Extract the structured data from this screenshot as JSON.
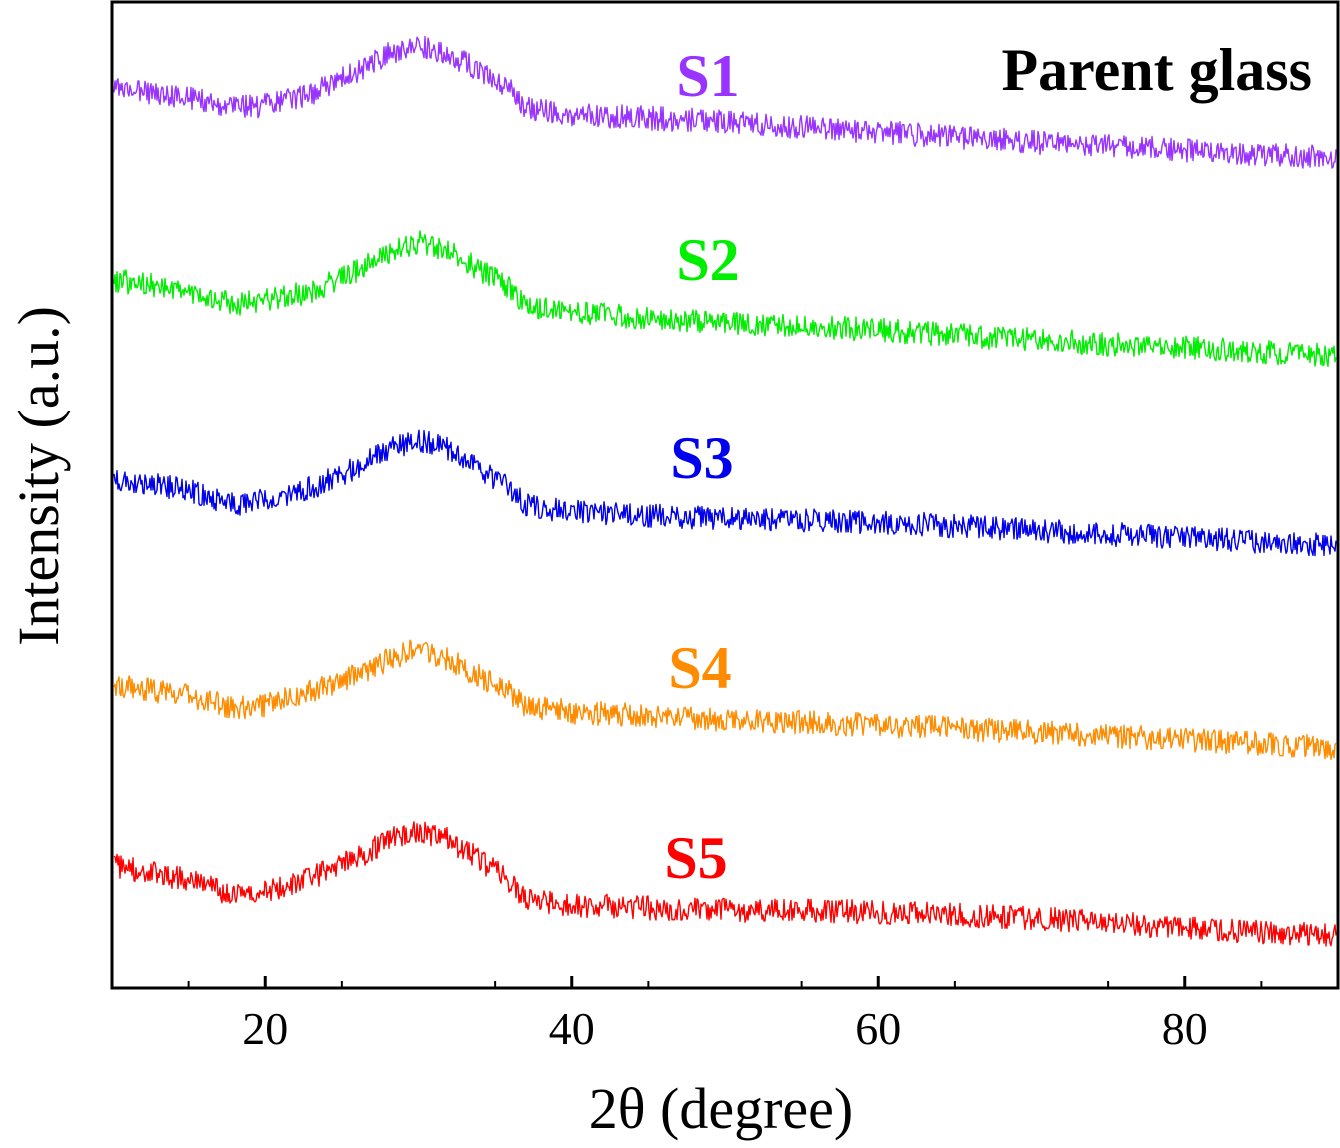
{
  "chart_data": {
    "type": "line",
    "title": "Parent glass",
    "xlabel": "2θ (degree)",
    "ylabel": "Intensity (a.u.)",
    "xlim": [
      10,
      90
    ],
    "x_ticks": [
      20,
      40,
      60,
      80
    ],
    "x_tick_labels": [
      "20",
      "40",
      "60",
      "80"
    ],
    "y_ticks_shown": false,
    "grid": false,
    "legend": "series labels placed above each curve",
    "x": [
      10,
      15,
      18,
      20,
      23,
      26,
      28,
      30,
      32,
      34,
      36,
      37,
      40,
      45,
      50,
      60,
      70,
      80,
      90
    ],
    "series": [
      {
        "name": "S1",
        "color": "#9933FF",
        "values": [
          88,
          98,
          108,
          105,
          94,
          72,
          54,
          44,
          54,
          72,
          88,
          108,
          114,
          118,
          122,
          132,
          142,
          150,
          158
        ]
      },
      {
        "name": "S2",
        "color": "#00EE00",
        "values": [
          280,
          290,
          305,
          300,
          292,
          270,
          252,
          242,
          252,
          270,
          288,
          305,
          312,
          318,
          322,
          330,
          340,
          348,
          356
        ]
      },
      {
        "name": "S3",
        "color": "#0000EE",
        "values": [
          478,
          490,
          505,
          500,
          488,
          468,
          450,
          440,
          450,
          468,
          488,
          505,
          512,
          516,
          518,
          522,
          530,
          538,
          546
        ]
      },
      {
        "name": "S4",
        "color": "#FF8C00",
        "values": [
          685,
          695,
          708,
          705,
          692,
          675,
          660,
          648,
          660,
          676,
          692,
          706,
          712,
          716,
          720,
          725,
          732,
          740,
          748
        ]
      },
      {
        "name": "S5",
        "color": "#FF0000",
        "values": [
          865,
          880,
          895,
          892,
          878,
          858,
          840,
          830,
          840,
          860,
          882,
          900,
          905,
          908,
          910,
          912,
          918,
          928,
          936
        ]
      }
    ]
  }
}
